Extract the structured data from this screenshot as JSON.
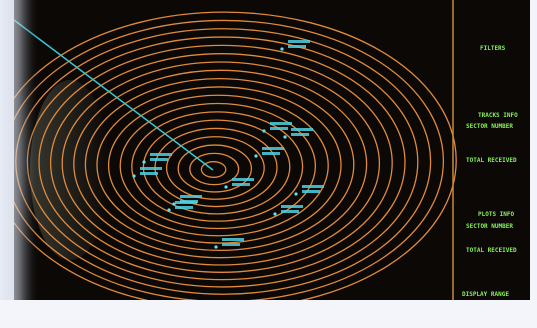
{
  "panel": {
    "lines": [
      "FILTERS",
      "TRACKS INFO",
      "SECTOR NUMBER",
      "TOTAL RECEIVED",
      "PLOTS INFO",
      "SECTOR NUMBER",
      "TOTAL RECEIVED",
      "DISPLAY RANGE"
    ]
  }
}
